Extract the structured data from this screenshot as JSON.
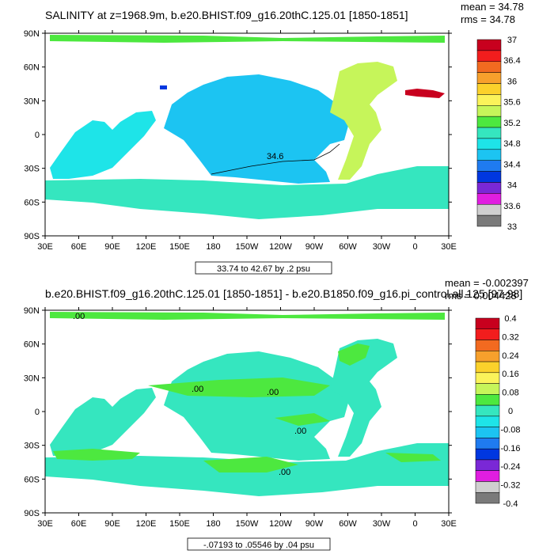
{
  "panels": [
    {
      "title": "SALINITY at z=1968.9m, b.e20.BHIST.f09_g16.20thC.125.01 [1850-1851]",
      "mean": "mean = 34.78",
      "rms": "rms = 34.78",
      "range": "33.74 to 42.67 by .2 psu",
      "contour_labels": [
        "34.6"
      ],
      "colorbar_labels": [
        "37",
        "36.4",
        "36",
        "35.6",
        "35.2",
        "34.8",
        "34.4",
        "34",
        "33.6",
        "33"
      ],
      "colorbar_colors": [
        "#c8001e",
        "#f21d1d",
        "#f26a20",
        "#f7a02c",
        "#fbd12b",
        "#fbf35a",
        "#c6f55a",
        "#4de83f",
        "#35e6bf",
        "#1ee4e8",
        "#1cc4f2",
        "#1f7bf0",
        "#0037e0",
        "#7a28d6",
        "#e01ee0",
        "#cfcfcf",
        "#7a7a7a"
      ]
    },
    {
      "title": "b.e20.BHIST.f09_g16.20thC.125.01 [1850-1851] - b.e20.B1850.f09_g16.pi_control.all.125 [97-98]",
      "mean": "mean = -0.002397",
      "rms": "rms = 0.004428",
      "range": "-.07193 to .05546 by .04 psu",
      "contour_labels": [
        ".00",
        ".00",
        ".00",
        ".00",
        ".00"
      ],
      "colorbar_labels": [
        "0.4",
        "0.32",
        "0.24",
        "0.16",
        "0.08",
        "0",
        "-0.08",
        "-0.16",
        "-0.24",
        "-0.32",
        "-0.4"
      ],
      "colorbar_colors": [
        "#c8001e",
        "#f21d1d",
        "#f26a20",
        "#f7a02c",
        "#fbd12b",
        "#fbf35a",
        "#c6f55a",
        "#4de83f",
        "#35e6bf",
        "#1ee4e8",
        "#1cc4f2",
        "#1f7bf0",
        "#0037e0",
        "#7a28d6",
        "#e01ee0",
        "#cfcfcf",
        "#7a7a7a"
      ]
    }
  ],
  "chart_data": [
    {
      "type": "heatmap",
      "title": "SALINITY at z=1968.9m, b.e20.BHIST.f09_g16.20thC.125.01 [1850-1851]",
      "xticks": [
        "30E",
        "60E",
        "90E",
        "120E",
        "150E",
        "180",
        "150W",
        "120W",
        "90W",
        "60W",
        "30W",
        "0",
        "30E"
      ],
      "yticks": [
        "90N",
        "60N",
        "30N",
        "0",
        "30S",
        "60S",
        "90S"
      ],
      "legend_ticks": [
        "37",
        "36.4",
        "36",
        "35.6",
        "35.2",
        "34.8",
        "34.4",
        "34",
        "33.6",
        "33"
      ],
      "units": "psu"
    },
    {
      "type": "heatmap",
      "title": "b.e20.BHIST.f09_g16.20thC.125.01 [1850-1851] - b.e20.B1850.f09_g16.pi_control.all.125 [97-98]",
      "xticks": [
        "30E",
        "60E",
        "90E",
        "120E",
        "150E",
        "180",
        "150W",
        "120W",
        "90W",
        "60W",
        "30W",
        "0",
        "30E"
      ],
      "yticks": [
        "90N",
        "60N",
        "30N",
        "0",
        "30S",
        "60S",
        "90S"
      ],
      "legend_ticks": [
        "0.4",
        "0.32",
        "0.24",
        "0.16",
        "0.08",
        "0",
        "-0.08",
        "-0.16",
        "-0.24",
        "-0.32",
        "-0.4"
      ],
      "units": "psu"
    }
  ]
}
